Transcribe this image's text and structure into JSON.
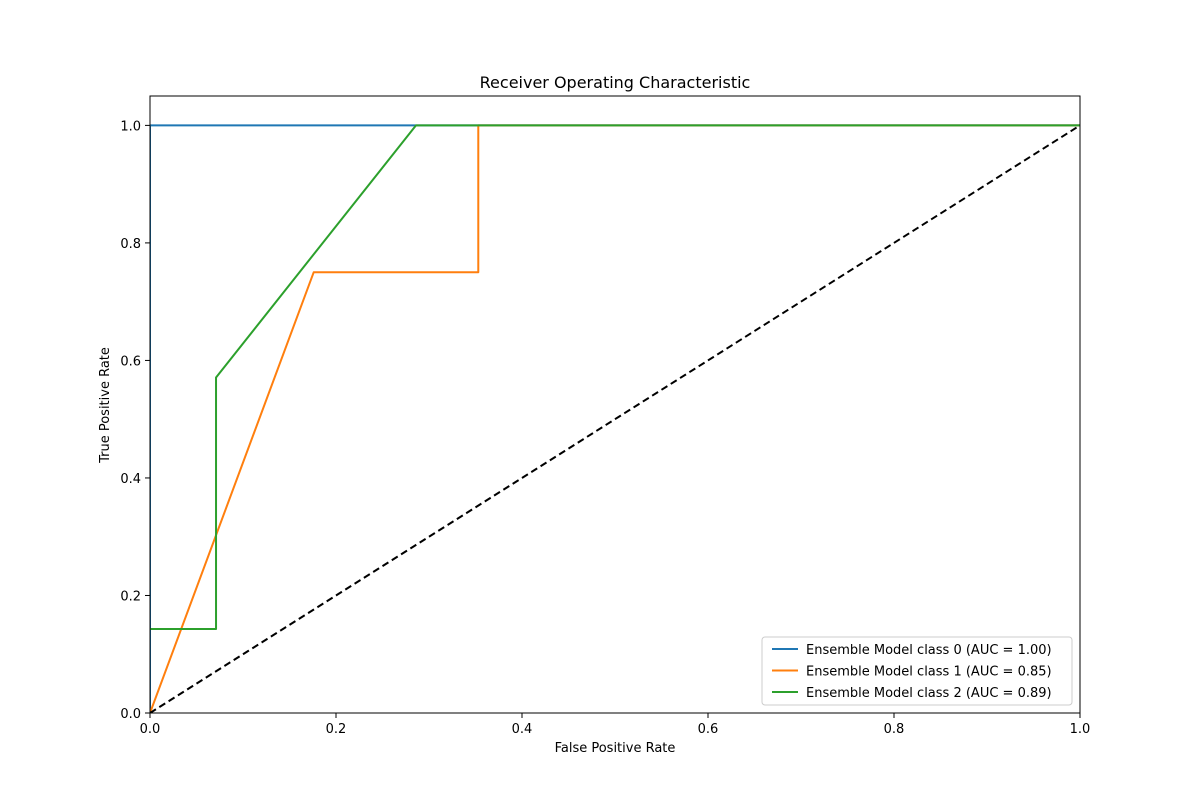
{
  "chart_data": {
    "type": "line",
    "title": "Receiver Operating Characteristic",
    "xlabel": "False Positive Rate",
    "ylabel": "True Positive Rate",
    "xlim": [
      0.0,
      1.0
    ],
    "ylim": [
      0.0,
      1.05
    ],
    "xticks": [
      "0.0",
      "0.2",
      "0.4",
      "0.6",
      "0.8",
      "1.0"
    ],
    "yticks": [
      "0.0",
      "0.2",
      "0.4",
      "0.6",
      "0.8",
      "1.0"
    ],
    "grid": false,
    "legend_position": "lower-right",
    "series": [
      {
        "name": "Ensemble Model class 0 (AUC = 1.00)",
        "color": "#1f77b4",
        "x": [
          0.0,
          0.0,
          1.0
        ],
        "y": [
          0.0,
          1.0,
          1.0
        ]
      },
      {
        "name": "Ensemble Model class 1 (AUC = 0.85)",
        "color": "#ff7f0e",
        "x": [
          0.0,
          0.176,
          0.353,
          0.353,
          1.0
        ],
        "y": [
          0.0,
          0.75,
          0.75,
          1.0,
          1.0
        ]
      },
      {
        "name": "Ensemble Model class 2 (AUC = 0.89)",
        "color": "#2ca02c",
        "x": [
          0.0,
          0.071,
          0.071,
          0.286,
          1.0
        ],
        "y": [
          0.143,
          0.143,
          0.571,
          1.0,
          1.0
        ]
      }
    ],
    "reference_line": {
      "color": "#000000",
      "style": "dashed",
      "x": [
        0.0,
        1.0
      ],
      "y": [
        0.0,
        1.0
      ]
    }
  }
}
